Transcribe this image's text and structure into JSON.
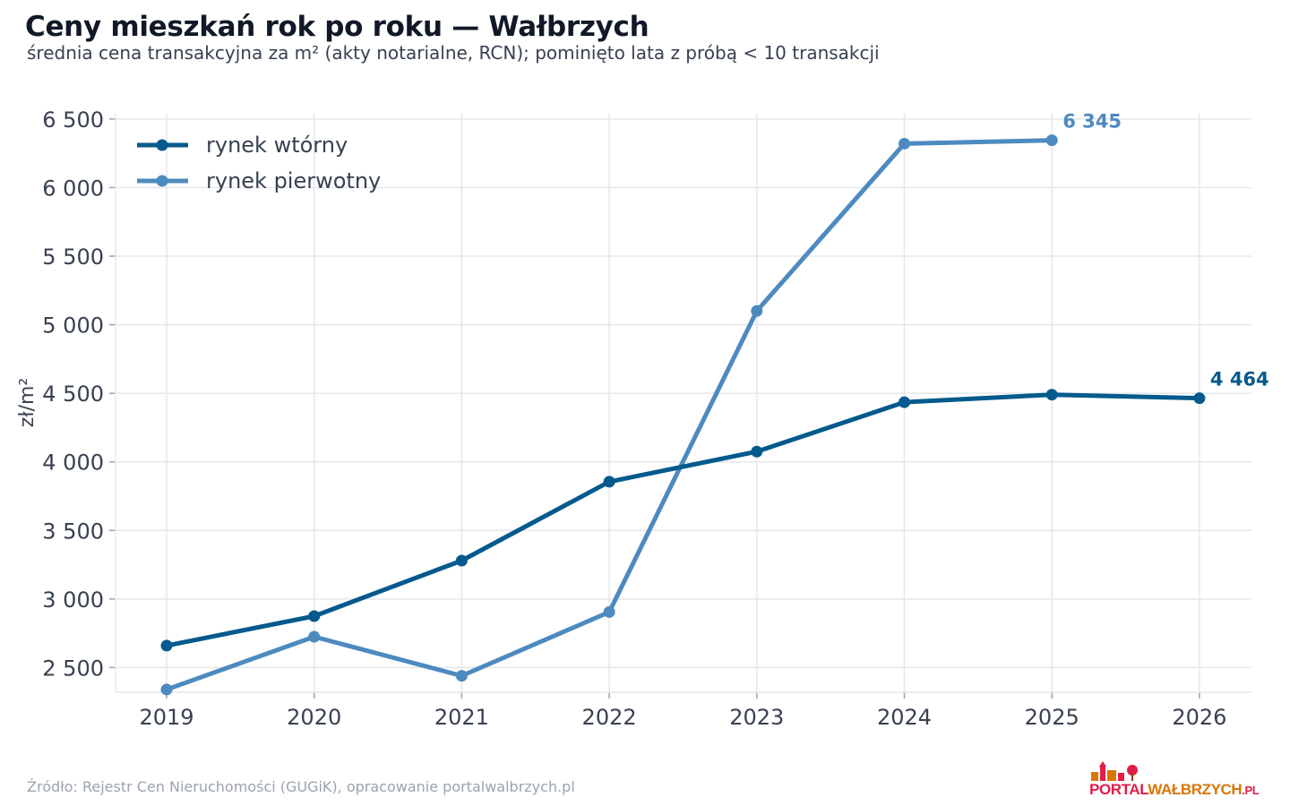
{
  "title": "Ceny mieszkań rok po roku — Wałbrzych",
  "subtitle": "średnia cena transakcyjna za m² (akty notarialne, RCN); pominięto lata z próbą < 10 transakcji",
  "source": "Źródło: Rejestr Cen Nieruchomości (GUGiK), opracowanie portalwalbrzych.pl",
  "logo": {
    "part1": "PORTAL",
    "part2": "WAŁBRZYCH",
    "part3": ".PL"
  },
  "chart_data": {
    "type": "line",
    "x": [
      2019,
      2020,
      2021,
      2022,
      2023,
      2024,
      2025,
      2026
    ],
    "xticklabels": [
      "2019",
      "2020",
      "2021",
      "2022",
      "2023",
      "2024",
      "2025",
      "2026"
    ],
    "ylabel": "zł/m²",
    "ylim": [
      2320,
      6545
    ],
    "yticks": [
      2500,
      3000,
      3500,
      4000,
      4500,
      5000,
      5500,
      6000,
      6500
    ],
    "yticklabels": [
      "2 500",
      "3 000",
      "3 500",
      "4 000",
      "4 500",
      "5 000",
      "5 500",
      "6 000",
      "6 500"
    ],
    "grid": true,
    "legend_position": "top-left",
    "series": [
      {
        "name": "rynek wtórny",
        "color": "#045a8d",
        "values": [
          2660,
          2875,
          3280,
          3855,
          4075,
          4435,
          4490,
          4464
        ],
        "end_label": "4 464"
      },
      {
        "name": "rynek pierwotny",
        "color": "#4d8ac0",
        "values": [
          2340,
          2725,
          2440,
          2905,
          5100,
          6320,
          6345,
          null
        ],
        "end_label": "6 345"
      }
    ]
  }
}
